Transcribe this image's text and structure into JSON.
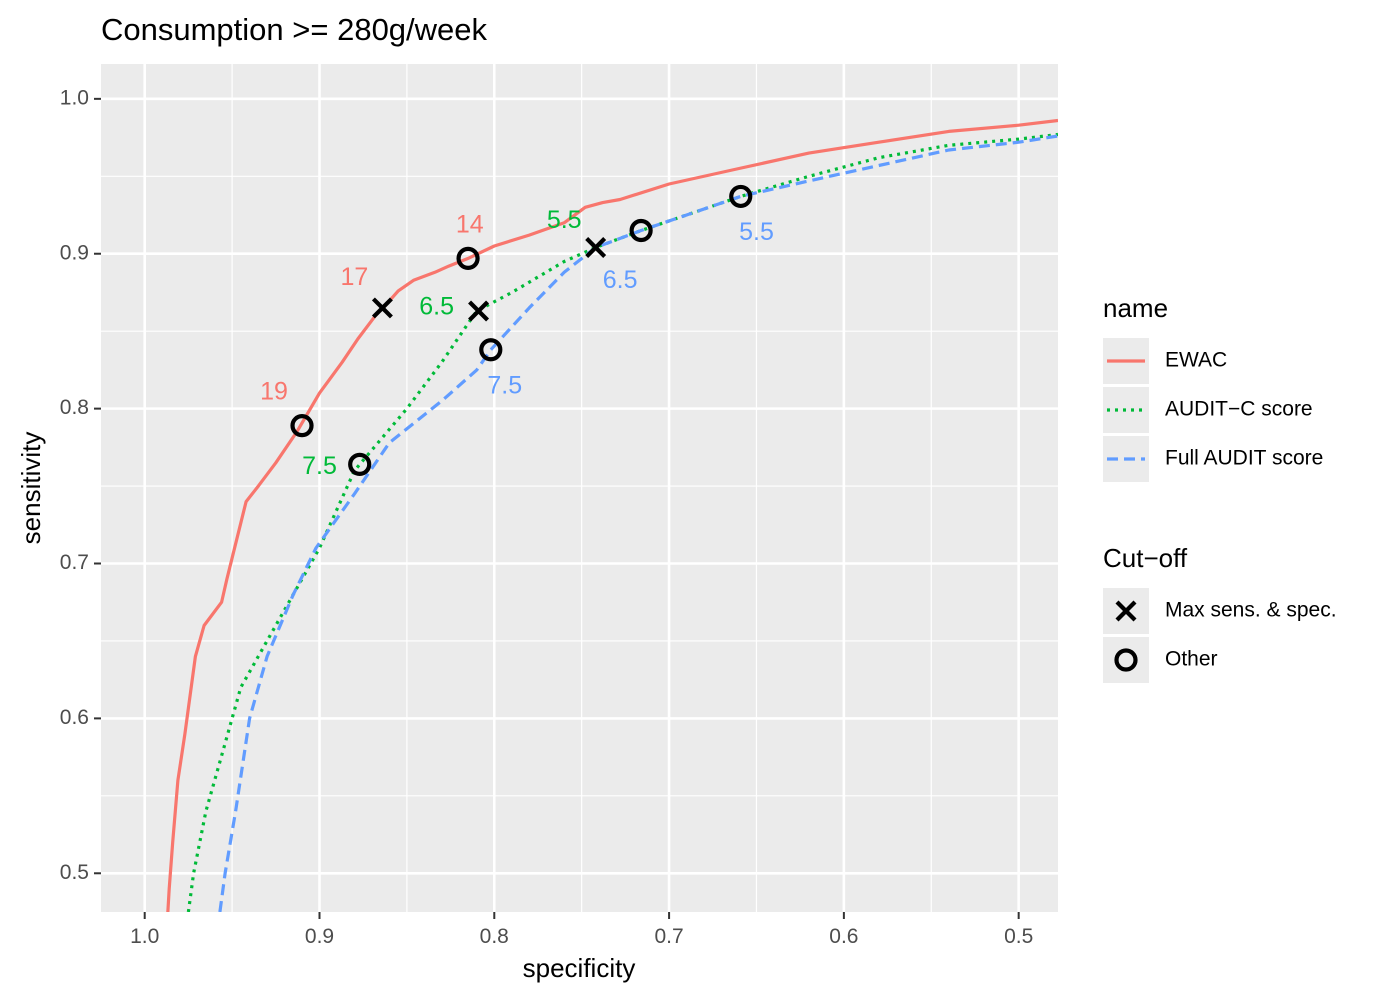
{
  "chart_data": {
    "type": "line",
    "title": "Consumption >= 280g/week",
    "xlabel": "specificity",
    "ylabel": "sensitivity",
    "x_reversed": true,
    "xlim": [
      1.025,
      0.4775
    ],
    "ylim": [
      0.475,
      1.0225
    ],
    "x_ticks": [
      "1.0",
      "0.9",
      "0.8",
      "0.7",
      "0.6",
      "0.5"
    ],
    "y_ticks": [
      "0.5",
      "0.6",
      "0.7",
      "0.8",
      "0.9",
      "1.0"
    ],
    "grid": true,
    "legend_placement": "right",
    "colors": {
      "panel": "#ebebeb",
      "grid": "#ffffff",
      "marker": "#000000"
    },
    "series": [
      {
        "name": "EWAC",
        "color": "#f8766d",
        "dash": "solid",
        "points": [
          [
            0.987,
            0.47
          ],
          [
            0.986,
            0.49
          ],
          [
            0.984,
            0.52
          ],
          [
            0.981,
            0.56
          ],
          [
            0.977,
            0.59
          ],
          [
            0.971,
            0.64
          ],
          [
            0.966,
            0.66
          ],
          [
            0.956,
            0.675
          ],
          [
            0.953,
            0.69
          ],
          [
            0.942,
            0.74
          ],
          [
            0.935,
            0.75
          ],
          [
            0.925,
            0.765
          ],
          [
            0.913,
            0.785
          ],
          [
            0.9,
            0.81
          ],
          [
            0.887,
            0.83
          ],
          [
            0.878,
            0.845
          ],
          [
            0.868,
            0.86
          ],
          [
            0.862,
            0.867
          ],
          [
            0.855,
            0.876
          ],
          [
            0.846,
            0.883
          ],
          [
            0.834,
            0.888
          ],
          [
            0.826,
            0.892
          ],
          [
            0.815,
            0.897
          ],
          [
            0.8,
            0.905
          ],
          [
            0.78,
            0.912
          ],
          [
            0.76,
            0.92
          ],
          [
            0.748,
            0.93
          ],
          [
            0.738,
            0.933
          ],
          [
            0.728,
            0.935
          ],
          [
            0.7,
            0.945
          ],
          [
            0.66,
            0.955
          ],
          [
            0.62,
            0.965
          ],
          [
            0.58,
            0.972
          ],
          [
            0.54,
            0.979
          ],
          [
            0.5,
            0.983
          ],
          [
            0.4775,
            0.986
          ]
        ]
      },
      {
        "name": "AUDIT−C score",
        "color": "#00ba38",
        "dash": "dotted",
        "points": [
          [
            0.975,
            0.475
          ],
          [
            0.972,
            0.5
          ],
          [
            0.965,
            0.54
          ],
          [
            0.955,
            0.58
          ],
          [
            0.945,
            0.62
          ],
          [
            0.935,
            0.64
          ],
          [
            0.92,
            0.67
          ],
          [
            0.9,
            0.71
          ],
          [
            0.88,
            0.76
          ],
          [
            0.877,
            0.764
          ],
          [
            0.85,
            0.8
          ],
          [
            0.83,
            0.83
          ],
          [
            0.815,
            0.855
          ],
          [
            0.81,
            0.863
          ],
          [
            0.79,
            0.875
          ],
          [
            0.76,
            0.895
          ],
          [
            0.742,
            0.904
          ],
          [
            0.716,
            0.915
          ],
          [
            0.69,
            0.925
          ],
          [
            0.659,
            0.937
          ],
          [
            0.62,
            0.95
          ],
          [
            0.58,
            0.962
          ],
          [
            0.54,
            0.97
          ],
          [
            0.5,
            0.974
          ],
          [
            0.4775,
            0.977
          ]
        ]
      },
      {
        "name": "Full AUDIT score",
        "color": "#619cff",
        "dash": "dashed",
        "points": [
          [
            0.957,
            0.475
          ],
          [
            0.954,
            0.5
          ],
          [
            0.948,
            0.54
          ],
          [
            0.94,
            0.6
          ],
          [
            0.93,
            0.64
          ],
          [
            0.915,
            0.68
          ],
          [
            0.902,
            0.71
          ],
          [
            0.88,
            0.745
          ],
          [
            0.86,
            0.778
          ],
          [
            0.83,
            0.805
          ],
          [
            0.81,
            0.825
          ],
          [
            0.802,
            0.838
          ],
          [
            0.78,
            0.865
          ],
          [
            0.76,
            0.888
          ],
          [
            0.742,
            0.904
          ],
          [
            0.716,
            0.915
          ],
          [
            0.69,
            0.925
          ],
          [
            0.659,
            0.937
          ],
          [
            0.62,
            0.947
          ],
          [
            0.58,
            0.957
          ],
          [
            0.54,
            0.967
          ],
          [
            0.5,
            0.972
          ],
          [
            0.4775,
            0.976
          ]
        ]
      }
    ],
    "markers": [
      {
        "series": "EWAC",
        "shape": "cross",
        "x": 0.864,
        "y": 0.865
      },
      {
        "series": "EWAC",
        "shape": "circle",
        "x": 0.815,
        "y": 0.897
      },
      {
        "series": "EWAC",
        "shape": "circle",
        "x": 0.91,
        "y": 0.789
      },
      {
        "series": "AUDIT−C score",
        "shape": "cross",
        "x": 0.809,
        "y": 0.863
      },
      {
        "series": "AUDIT−C score",
        "shape": "cross",
        "x": 0.742,
        "y": 0.904
      },
      {
        "series": "AUDIT−C score",
        "shape": "circle",
        "x": 0.877,
        "y": 0.764
      },
      {
        "series": "Full AUDIT score",
        "shape": "circle",
        "x": 0.802,
        "y": 0.838
      },
      {
        "series": "Full AUDIT score",
        "shape": "circle",
        "x": 0.716,
        "y": 0.915
      },
      {
        "series": "Full AUDIT score",
        "shape": "circle",
        "x": 0.659,
        "y": 0.937
      }
    ],
    "annotations": [
      {
        "text": "17",
        "x": 0.88,
        "y": 0.884,
        "color": "#f8766d"
      },
      {
        "text": "14",
        "x": 0.814,
        "y": 0.918,
        "color": "#f8766d"
      },
      {
        "text": "19",
        "x": 0.926,
        "y": 0.81,
        "color": "#f8766d"
      },
      {
        "text": "6.5",
        "x": 0.833,
        "y": 0.865,
        "color": "#00ba38"
      },
      {
        "text": "5.5",
        "x": 0.76,
        "y": 0.921,
        "color": "#00ba38"
      },
      {
        "text": "7.5",
        "x": 0.9,
        "y": 0.762,
        "color": "#00ba38"
      },
      {
        "text": "7.5",
        "x": 0.794,
        "y": 0.814,
        "color": "#619cff"
      },
      {
        "text": "6.5",
        "x": 0.728,
        "y": 0.882,
        "color": "#619cff"
      },
      {
        "text": "5.5",
        "x": 0.65,
        "y": 0.913,
        "color": "#619cff"
      }
    ],
    "legends": [
      {
        "title": "name",
        "items": [
          {
            "label": "EWAC",
            "kind": "line",
            "color": "#f8766d",
            "dash": "solid"
          },
          {
            "label": "AUDIT−C score",
            "kind": "line",
            "color": "#00ba38",
            "dash": "dotted"
          },
          {
            "label": "Full AUDIT score",
            "kind": "line",
            "color": "#619cff",
            "dash": "dashed"
          }
        ]
      },
      {
        "title": "Cut−off",
        "items": [
          {
            "label": "Max sens. & spec.",
            "kind": "cross",
            "color": "#000000"
          },
          {
            "label": "Other",
            "kind": "circle",
            "color": "#000000"
          }
        ]
      }
    ]
  }
}
